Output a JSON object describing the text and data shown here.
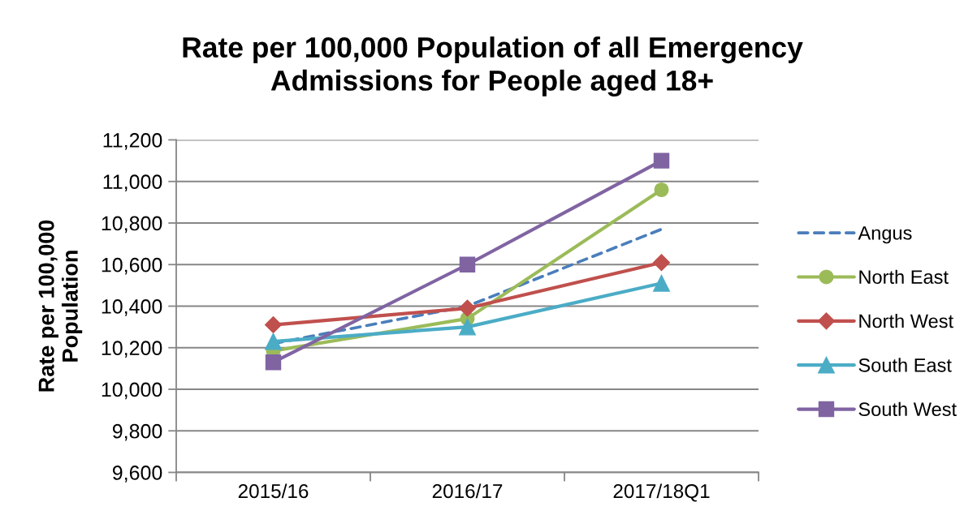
{
  "chart_data": {
    "type": "line",
    "title": "Rate per 100,000 Population of all Emergency\nAdmissions for People aged 18+",
    "ylabel": "Rate per 100,000\nPopulation",
    "categories": [
      "2015/16",
      "2016/17",
      "2017/18Q1"
    ],
    "series": [
      {
        "name": "Angus",
        "color": "#4a7ebb",
        "values": [
          10220,
          10400,
          10770
        ],
        "marker": "none",
        "line_style": "dashed"
      },
      {
        "name": "North East",
        "color": "#9bbb59",
        "values": [
          10185,
          10340,
          10960
        ],
        "marker": "circle",
        "line_style": "solid"
      },
      {
        "name": "North West",
        "color": "#c0504d",
        "values": [
          10310,
          10390,
          10610
        ],
        "marker": "diamond",
        "line_style": "solid"
      },
      {
        "name": "South East",
        "color": "#4bacc6",
        "values": [
          10230,
          10300,
          10510
        ],
        "marker": "triangle",
        "line_style": "solid"
      },
      {
        "name": "South West",
        "color": "#8064a2",
        "values": [
          10130,
          10600,
          11100
        ],
        "marker": "square",
        "line_style": "solid"
      }
    ],
    "ylim": [
      9600,
      11200
    ],
    "yticks": [
      {
        "value": 9600,
        "label": "9,600"
      },
      {
        "value": 9800,
        "label": "9,800"
      },
      {
        "value": 10000,
        "label": "10,000"
      },
      {
        "value": 10200,
        "label": "10,200"
      },
      {
        "value": 10400,
        "label": "10,400"
      },
      {
        "value": 10600,
        "label": "10,600"
      },
      {
        "value": 10800,
        "label": "10,800"
      },
      {
        "value": 11000,
        "label": "11,000"
      },
      {
        "value": 11200,
        "label": "11,200"
      }
    ],
    "grid": "y",
    "legend": "right"
  }
}
